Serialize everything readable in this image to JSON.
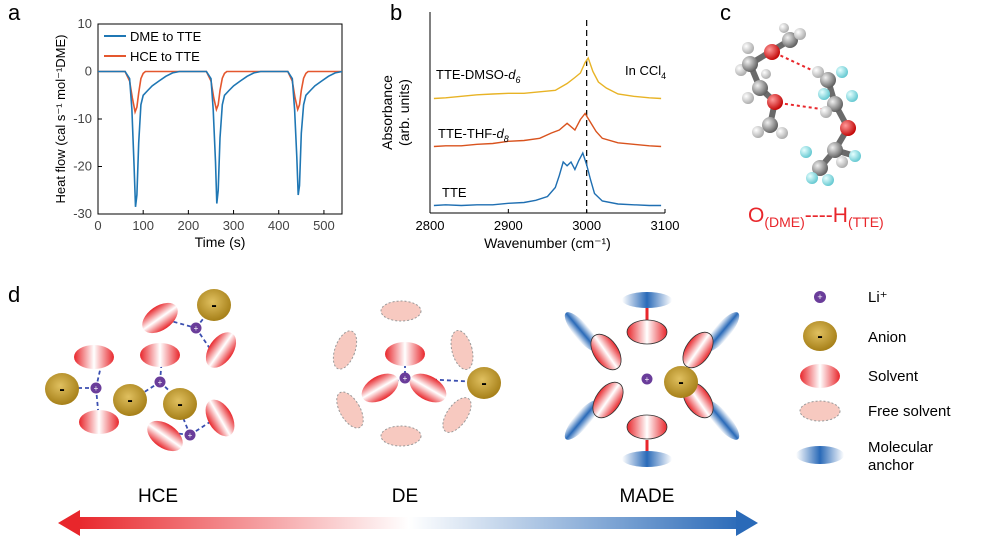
{
  "panel_labels": {
    "a": "a",
    "b": "b",
    "c": "c",
    "d": "d"
  },
  "colors": {
    "dme": "#1f77b4",
    "hce": "#e4572e",
    "tte": "#1f6fb2",
    "tte_thf": "#d9531e",
    "tte_dmso": "#e8b325",
    "oxygen_bond": "#e8262b",
    "anion": "#b8901f",
    "li": "#6a3d9a",
    "solvent": "#e8262b",
    "free_solvent": "#f7c9c0",
    "anchor": "#2a6ab8"
  },
  "chart_data": [
    {
      "type": "line",
      "panel": "a",
      "xlabel": "Time (s)",
      "ylabel": "Heat flow (cal s⁻¹ mol⁻¹DME)",
      "xlim": [
        0,
        540
      ],
      "ylim": [
        -30,
        10
      ],
      "xticks": [
        0,
        100,
        200,
        300,
        400,
        500
      ],
      "yticks": [
        10,
        0,
        -10,
        -20,
        -30
      ],
      "legend_position": "top-left",
      "series": [
        {
          "name": "DME to TTE",
          "color": "#1f77b4",
          "x": [
            0,
            60,
            70,
            75,
            80,
            83,
            86,
            90,
            95,
            100,
            110,
            120,
            135,
            150,
            165,
            175,
            180,
            240,
            250,
            255,
            260,
            263,
            266,
            270,
            275,
            280,
            290,
            300,
            315,
            330,
            345,
            355,
            360,
            420,
            430,
            435,
            440,
            443,
            446,
            450,
            455,
            460,
            470,
            480,
            495,
            510,
            525,
            535,
            540
          ],
          "y": [
            0,
            0,
            -1.5,
            -8,
            -20,
            -28.5,
            -26,
            -15,
            -7,
            -5,
            -4,
            -3,
            -2,
            -1,
            -0.3,
            -0.1,
            0,
            0,
            -1.5,
            -8,
            -19,
            -27.8,
            -25,
            -14,
            -7,
            -5,
            -4,
            -3,
            -2,
            -1,
            -0.3,
            -0.1,
            0,
            0,
            -1.5,
            -8,
            -18,
            -26,
            -24,
            -13,
            -7,
            -5,
            -4,
            -3,
            -2,
            -1,
            -0.3,
            -0.1,
            0
          ]
        },
        {
          "name": "HCE to TTE",
          "color": "#e4572e",
          "x": [
            0,
            60,
            70,
            76,
            82,
            86,
            90,
            95,
            100,
            105,
            240,
            250,
            256,
            262,
            266,
            270,
            275,
            280,
            285,
            420,
            430,
            436,
            442,
            446,
            450,
            455,
            460,
            465,
            540
          ],
          "y": [
            0,
            0,
            -2,
            -5.5,
            -8.5,
            -7.5,
            -4.5,
            -1.5,
            -0.4,
            0,
            0,
            -2,
            -5.5,
            -8,
            -7,
            -4,
            -1.4,
            -0.4,
            0,
            0,
            -2,
            -5.5,
            -8,
            -7,
            -4,
            -1.4,
            -0.4,
            0,
            0
          ]
        }
      ]
    },
    {
      "type": "line",
      "panel": "b",
      "xlabel": "Wavenumber (cm⁻¹)",
      "ylabel": "Absorbance (arb. units)",
      "xlim": [
        2800,
        3100
      ],
      "xticks": [
        2800,
        2900,
        3000,
        3100
      ],
      "annotation": "In CCl4",
      "marker_line_x": 3000,
      "series": [
        {
          "name": "TTE",
          "color": "#1f6fb2",
          "x": [
            2805,
            2820,
            2840,
            2860,
            2880,
            2900,
            2920,
            2935,
            2950,
            2960,
            2965,
            2970,
            2975,
            2980,
            2985,
            2990,
            2995,
            3000,
            3005,
            3010,
            3020,
            3040,
            3060,
            3080,
            3095
          ],
          "y": [
            0.02,
            0.03,
            0.02,
            0.03,
            0.03,
            0.05,
            0.06,
            0.09,
            0.14,
            0.26,
            0.42,
            0.6,
            0.55,
            0.6,
            0.5,
            0.62,
            0.72,
            0.56,
            0.36,
            0.18,
            0.08,
            0.04,
            0.03,
            0.02,
            0.02
          ]
        },
        {
          "name": "TTE-THF-d8",
          "color": "#d9531e",
          "x": [
            2805,
            2820,
            2840,
            2860,
            2880,
            2900,
            2920,
            2940,
            2955,
            2965,
            2975,
            2985,
            2992,
            2998,
            3005,
            3012,
            3020,
            3040,
            3060,
            3080,
            3095
          ],
          "y": [
            0.02,
            0.03,
            0.03,
            0.05,
            0.06,
            0.09,
            0.1,
            0.13,
            0.2,
            0.24,
            0.33,
            0.24,
            0.38,
            0.46,
            0.34,
            0.22,
            0.13,
            0.07,
            0.05,
            0.03,
            0.02
          ]
        },
        {
          "name": "TTE-DMSO-d6",
          "color": "#e8b325",
          "x": [
            2805,
            2820,
            2840,
            2860,
            2880,
            2900,
            2920,
            2940,
            2960,
            2975,
            2985,
            2992,
            2998,
            3002,
            3008,
            3015,
            3025,
            3040,
            3060,
            3080,
            3095
          ],
          "y": [
            0.02,
            0.03,
            0.05,
            0.07,
            0.08,
            0.09,
            0.09,
            0.11,
            0.13,
            0.22,
            0.3,
            0.36,
            0.5,
            0.56,
            0.38,
            0.24,
            0.16,
            0.08,
            0.05,
            0.03,
            0.02
          ]
        }
      ]
    }
  ],
  "panel_c": {
    "label_o": "O",
    "label_o_sub": "(DME)",
    "dashes": "----",
    "label_h": "H",
    "label_h_sub": "(TTE)"
  },
  "panel_d": {
    "cluster_labels": [
      "HCE",
      "DE",
      "MADE"
    ],
    "anion_sign": "-",
    "li_sign": "+",
    "legend": [
      {
        "icon": "li-icon",
        "label": "Li⁺"
      },
      {
        "icon": "anion-icon",
        "label": "Anion"
      },
      {
        "icon": "solvent-icon",
        "label": "Solvent"
      },
      {
        "icon": "free-solvent-icon",
        "label": "Free solvent"
      },
      {
        "icon": "molecular-anchor-icon",
        "label": "Molecular\nanchor"
      }
    ]
  }
}
